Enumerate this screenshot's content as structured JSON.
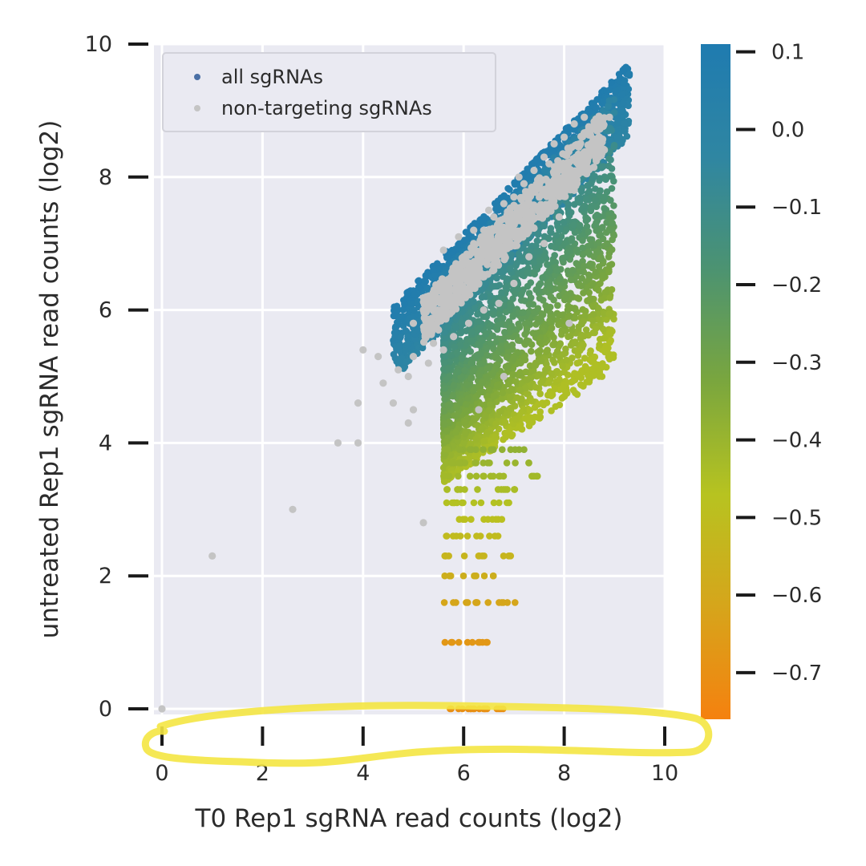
{
  "chart_data": {
    "type": "scatter",
    "title": "",
    "xlabel": "T0 Rep1 sgRNA read counts (log2)",
    "ylabel": "untreated Rep1 sgRNA read counts (log2)",
    "xlim": [
      -0.2,
      10
    ],
    "ylim": [
      -0.2,
      10
    ],
    "x_ticks": [
      0,
      2,
      4,
      6,
      8,
      10
    ],
    "y_ticks": [
      0,
      2,
      4,
      6,
      8,
      10
    ],
    "grid": true,
    "legend_position": "top-left",
    "series": [
      {
        "name": "all sgRNAs",
        "color_mode": "continuous colormap by log2 fold change",
        "legend_color": "#4a6fa5",
        "points_description": "dense cloud of several thousand sgRNAs from x≈4.6–9.3, y≈0–9.6; diagonal band above, downward fan at lower counts"
      },
      {
        "name": "non-targeting sgRNAs",
        "color": "#c4c4c4",
        "points": [
          [
            0,
            0
          ],
          [
            1.0,
            2.3
          ],
          [
            2.6,
            3.0
          ],
          [
            3.5,
            4.0
          ],
          [
            3.9,
            4.0
          ],
          [
            3.9,
            4.6
          ],
          [
            4.0,
            5.4
          ],
          [
            4.3,
            5.3
          ],
          [
            4.4,
            4.9
          ],
          [
            4.6,
            4.6
          ],
          [
            4.7,
            5.1
          ],
          [
            4.9,
            5.0
          ],
          [
            4.9,
            4.3
          ],
          [
            5.0,
            5.3
          ],
          [
            5.0,
            4.5
          ],
          [
            5.2,
            2.8
          ],
          [
            5.3,
            5.2
          ],
          [
            5.4,
            5.5
          ],
          [
            5.6,
            5.4
          ],
          [
            6.3,
            4.5
          ],
          [
            6.8,
            5.0
          ],
          [
            8.1,
            5.8
          ],
          [
            5.0,
            5.8
          ],
          [
            5.2,
            6.0
          ],
          [
            5.4,
            6.2
          ],
          [
            5.6,
            6.4
          ],
          [
            5.8,
            6.6
          ],
          [
            6.0,
            6.8
          ],
          [
            6.2,
            7.0
          ],
          [
            6.4,
            7.2
          ],
          [
            6.6,
            7.4
          ],
          [
            6.8,
            7.6
          ],
          [
            7.0,
            7.7
          ],
          [
            7.2,
            7.9
          ],
          [
            7.4,
            8.1
          ],
          [
            7.6,
            8.3
          ],
          [
            7.8,
            8.5
          ],
          [
            8.0,
            8.6
          ],
          [
            8.2,
            8.8
          ],
          [
            8.4,
            8.9
          ],
          [
            8.6,
            8.8
          ],
          [
            8.5,
            8.4
          ],
          [
            7.9,
            7.9
          ],
          [
            7.5,
            7.4
          ],
          [
            7.2,
            7.3
          ],
          [
            6.9,
            7.0
          ],
          [
            6.6,
            6.6
          ],
          [
            6.3,
            6.5
          ],
          [
            6.0,
            6.3
          ],
          [
            5.7,
            6.1
          ],
          [
            5.5,
            5.7
          ],
          [
            5.8,
            5.6
          ],
          [
            6.1,
            5.8
          ],
          [
            6.4,
            6.0
          ],
          [
            6.7,
            6.1
          ],
          [
            7.0,
            6.4
          ],
          [
            7.3,
            6.8
          ],
          [
            7.6,
            7.0
          ],
          [
            7.9,
            7.4
          ],
          [
            8.2,
            7.8
          ],
          [
            8.4,
            8.1
          ],
          [
            8.7,
            8.6
          ],
          [
            8.9,
            8.9
          ],
          [
            6.2,
            7.2
          ],
          [
            6.5,
            7.5
          ],
          [
            7.1,
            8.0
          ],
          [
            7.7,
            8.2
          ],
          [
            5.6,
            6.9
          ],
          [
            5.9,
            7.1
          ],
          [
            6.6,
            6.9
          ]
        ]
      }
    ],
    "colorbar": {
      "ticks": [
        0.1,
        0.0,
        -0.1,
        -0.2,
        -0.3,
        -0.4,
        -0.5,
        -0.6,
        -0.7
      ],
      "tick_labels": [
        "0.1",
        "0.0",
        "−0.1",
        "−0.2",
        "−0.3",
        "−0.4",
        "−0.5",
        "−0.6",
        "−0.7"
      ],
      "range": [
        -0.76,
        0.11
      ],
      "colors": [
        "#f5810f",
        "#d6a51b",
        "#b7c320",
        "#7aa63e",
        "#4c9371",
        "#2f86a2",
        "#1f7bb0"
      ]
    },
    "annotation": {
      "type": "hand-drawn ellipse",
      "color": "#f4e642",
      "target": "x-axis ticks"
    },
    "background_color": "#eaeaf2",
    "grid_color": "#ffffff"
  }
}
